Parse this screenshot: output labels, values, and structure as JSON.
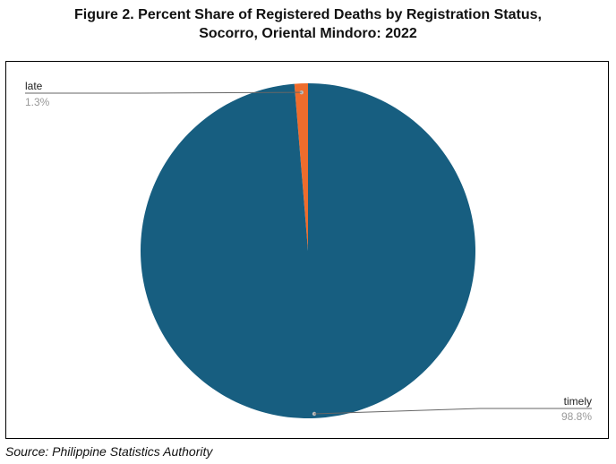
{
  "chart_data": {
    "type": "pie",
    "title": "Figure 2. Percent Share of Registered Deaths by Registration Status,",
    "subtitle": "Socorro, Oriental Mindoro: 2022",
    "slices": [
      {
        "label": "late",
        "value": 1.3,
        "display": "1.3%",
        "color": "#ee6c2c"
      },
      {
        "label": "timely",
        "value": 98.8,
        "display": "98.8%",
        "color": "#175e80"
      }
    ],
    "legend": "none"
  },
  "footer": {
    "source": "Source: Philippine Statistics Authority"
  }
}
